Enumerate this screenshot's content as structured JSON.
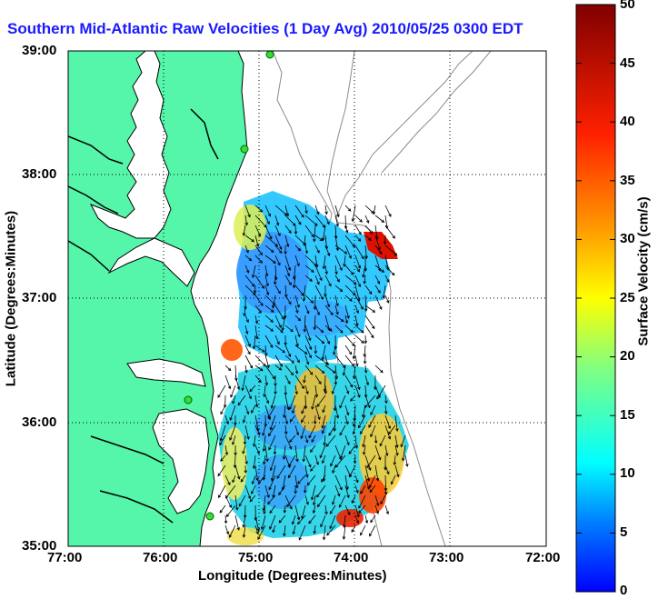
{
  "title": "Southern Mid-Atlantic Raw Velocities (1 Day Avg) 2010/05/25 0300 EDT",
  "map": {
    "xlabel": "Longitude (Degrees:Minutes)",
    "ylabel": "Latitude (Degrees:Minutes)",
    "lon_ticks": [
      "77:00",
      "76:00",
      "75:00",
      "74:00",
      "73:00",
      "72:00"
    ],
    "lat_ticks": [
      "39:00",
      "38:00",
      "37:00",
      "36:00",
      "35:00"
    ],
    "lon_range_west": [
      77,
      72
    ],
    "lat_range_north": [
      35,
      39
    ],
    "land_color": "#55f5aa",
    "coast_color": "#000000",
    "bathymetry_color": "#8c8c8c"
  },
  "colorbar": {
    "label": "Surface Velocity (cm/s)",
    "ticks": [
      "0",
      "5",
      "10",
      "15",
      "20",
      "25",
      "30",
      "35",
      "40",
      "45",
      "50"
    ],
    "range": [
      0,
      50
    ]
  }
}
